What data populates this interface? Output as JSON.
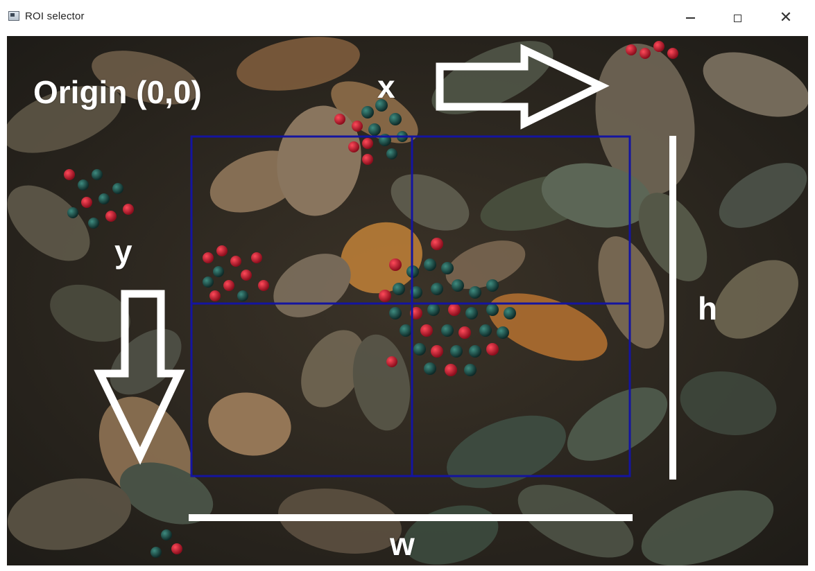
{
  "window": {
    "title": "ROI selector",
    "icon": "app-window-icon",
    "controls": {
      "minimize": "minimize-icon",
      "maximize": "maximize-icon",
      "close": "close-icon"
    }
  },
  "image": {
    "labels": {
      "origin": "Origin (0,0)",
      "x": "x",
      "y": "y",
      "h": "h",
      "w": "w"
    },
    "colors": {
      "roi_grid": "#1414a0",
      "annotation": "#ffffff"
    }
  }
}
